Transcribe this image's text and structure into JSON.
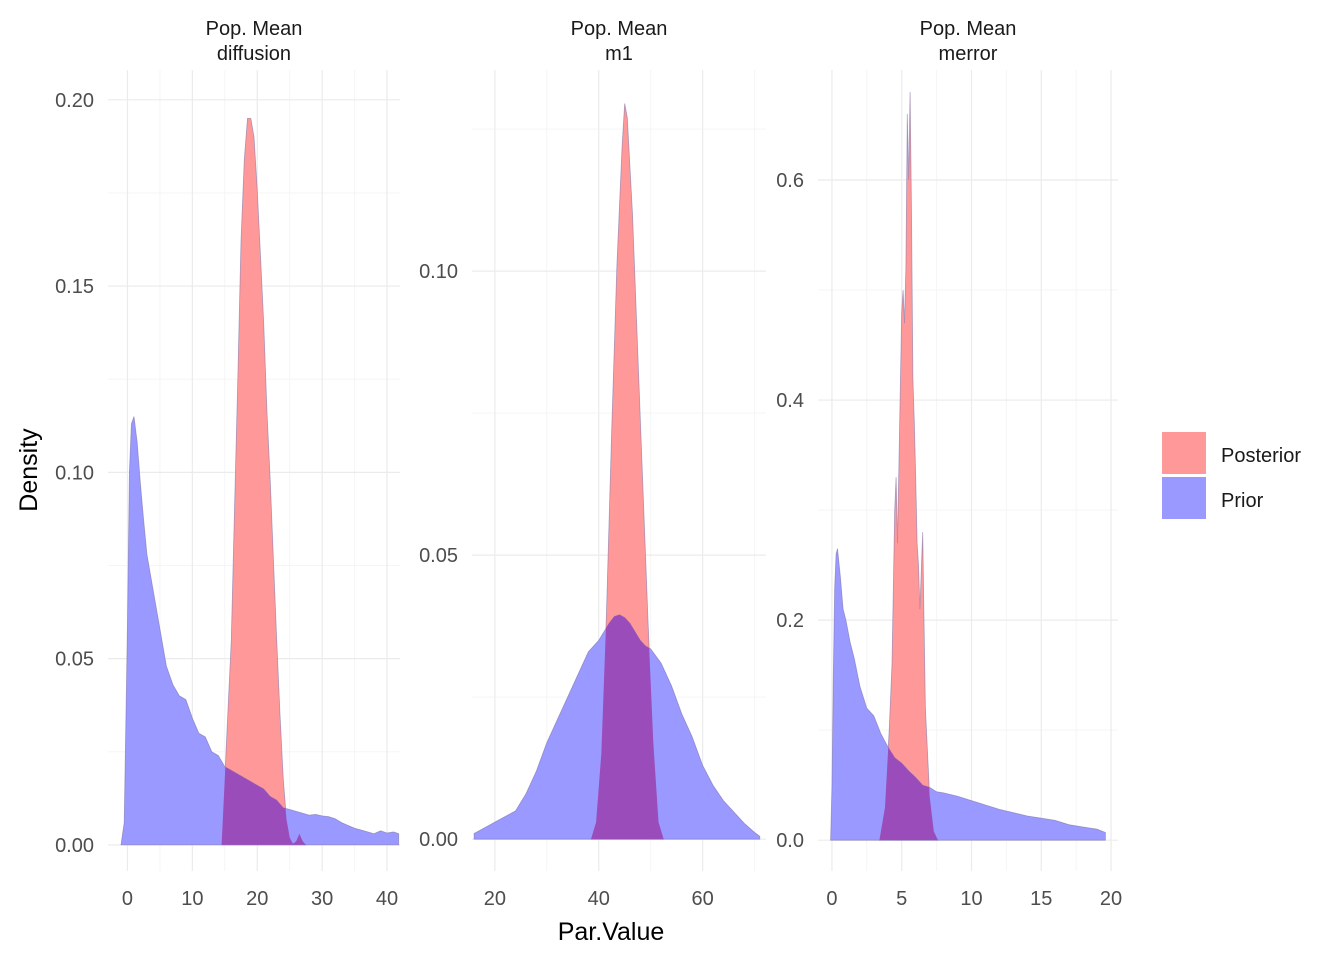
{
  "chart_data": {
    "type": "area",
    "xlabel": "Par.Value",
    "ylabel": "Density",
    "legend": {
      "position": "right",
      "entries": [
        {
          "name": "Posterior",
          "color": "#ff9999"
        },
        {
          "name": "Prior",
          "color": "#9999ff"
        }
      ]
    },
    "colors": {
      "posterior_fill": "#ff9999",
      "prior_fill": "#9999ff",
      "overlap_fill": "#9a4cba",
      "outline": "#7a6fa8",
      "grid_major": "#ebebeb",
      "grid_minor": "#f5f5f5"
    },
    "grid": true,
    "panels": [
      {
        "strip": [
          "Pop. Mean",
          "diffusion"
        ],
        "xlim": [
          -3,
          42
        ],
        "ylim": [
          -0.007,
          0.208
        ],
        "xticks": [
          0,
          10,
          20,
          30,
          40
        ],
        "yticks": [
          0.0,
          0.05,
          0.1,
          0.15,
          0.2
        ],
        "ytick_labels": [
          "0.00",
          "0.05",
          "0.10",
          "0.15",
          "0.20"
        ],
        "series": [
          {
            "name": "Prior",
            "x": [
              -1,
              -0.5,
              0,
              0.3,
              0.6,
              1,
              1.5,
              2,
              2.5,
              3,
              4,
              5,
              6,
              7,
              8,
              9,
              10,
              11,
              12,
              13,
              14,
              15,
              16,
              17,
              18,
              19,
              20,
              21,
              22,
              23,
              24,
              25,
              26,
              27,
              28,
              29,
              30,
              31,
              32,
              33,
              34,
              35,
              36,
              37,
              38,
              39,
              40,
              41,
              41.8
            ],
            "y": [
              0,
              0.006,
              0.06,
              0.1,
              0.113,
              0.115,
              0.108,
              0.097,
              0.087,
              0.078,
              0.068,
              0.058,
              0.048,
              0.043,
              0.04,
              0.039,
              0.034,
              0.03,
              0.029,
              0.025,
              0.024,
              0.021,
              0.02,
              0.019,
              0.018,
              0.017,
              0.016,
              0.015,
              0.013,
              0.012,
              0.01,
              0.0095,
              0.009,
              0.0085,
              0.008,
              0.0082,
              0.0078,
              0.0076,
              0.007,
              0.006,
              0.0052,
              0.0045,
              0.004,
              0.0035,
              0.003,
              0.0038,
              0.0032,
              0.0035,
              0.003
            ]
          },
          {
            "name": "Posterior",
            "x": [
              14.5,
              15,
              16,
              16.5,
              17,
              17.5,
              18,
              18.5,
              19,
              19.5,
              20,
              20.5,
              21,
              21.5,
              22,
              22.5,
              23,
              23.5,
              24,
              24.5,
              25,
              25.5,
              26,
              26.5,
              27,
              27.5
            ],
            "y": [
              0,
              0.018,
              0.055,
              0.09,
              0.125,
              0.162,
              0.184,
              0.195,
              0.195,
              0.19,
              0.176,
              0.158,
              0.14,
              0.116,
              0.098,
              0.076,
              0.055,
              0.035,
              0.018,
              0.007,
              0.002,
              0.0003,
              0.001,
              0.003,
              0.001,
              0
            ]
          }
        ]
      },
      {
        "strip": [
          "Pop. Mean",
          "m1"
        ],
        "xlim": [
          15.6,
          72.2
        ],
        "ylim": [
          -0.0056,
          0.1354
        ],
        "xticks": [
          20,
          40,
          60
        ],
        "yticks": [
          0.0,
          0.05,
          0.1
        ],
        "ytick_labels": [
          "0.00",
          "0.05",
          "0.10"
        ],
        "series": [
          {
            "name": "Prior",
            "x": [
              16,
              18,
              20,
              22,
              24,
              26,
              28,
              30,
              32,
              34,
              36,
              38,
              40,
              42,
              43,
              44,
              45,
              46,
              47,
              48,
              49,
              50,
              52,
              54,
              56,
              58,
              60,
              62,
              64,
              66,
              68,
              70,
              71
            ],
            "y": [
              0.001,
              0.002,
              0.003,
              0.004,
              0.005,
              0.008,
              0.012,
              0.017,
              0.021,
              0.025,
              0.029,
              0.033,
              0.035,
              0.038,
              0.0392,
              0.0395,
              0.039,
              0.038,
              0.0365,
              0.035,
              0.034,
              0.0335,
              0.031,
              0.027,
              0.022,
              0.018,
              0.013,
              0.0095,
              0.0068,
              0.0048,
              0.0028,
              0.0012,
              0.0005
            ]
          },
          {
            "name": "Posterior",
            "x": [
              38.5,
              39.5,
              40.5,
              41.5,
              42.5,
              43.5,
              44.5,
              45,
              45.5,
              46.5,
              47.5,
              48.5,
              49.5,
              50.5,
              51.5,
              52.5
            ],
            "y": [
              0,
              0.003,
              0.015,
              0.04,
              0.072,
              0.101,
              0.122,
              0.1295,
              0.127,
              0.11,
              0.086,
              0.062,
              0.038,
              0.017,
              0.003,
              0
            ]
          }
        ]
      },
      {
        "strip": [
          "Pop. Mean",
          "merror"
        ],
        "xlim": [
          -1,
          20.5
        ],
        "ylim": [
          -0.028,
          0.7
        ],
        "xticks": [
          0,
          5,
          10,
          15,
          20
        ],
        "yticks": [
          0.0,
          0.2,
          0.4,
          0.6
        ],
        "ytick_labels": [
          "0.0",
          "0.2",
          "0.4",
          "0.6"
        ],
        "series": [
          {
            "name": "Prior",
            "x": [
              -0.1,
              0,
              0.1,
              0.2,
              0.3,
              0.4,
              0.6,
              0.8,
              1,
              1.3,
              1.6,
              2,
              2.5,
              3,
              3.5,
              4,
              4.5,
              5,
              5.5,
              6,
              6.5,
              7,
              7.5,
              8,
              9,
              10,
              11,
              12,
              13,
              14,
              15,
              16,
              17,
              18,
              19,
              19.6
            ],
            "y": [
              0,
              0.05,
              0.15,
              0.23,
              0.26,
              0.265,
              0.24,
              0.21,
              0.2,
              0.18,
              0.165,
              0.14,
              0.12,
              0.113,
              0.097,
              0.085,
              0.075,
              0.07,
              0.063,
              0.057,
              0.05,
              0.048,
              0.044,
              0.043,
              0.04,
              0.036,
              0.032,
              0.028,
              0.025,
              0.022,
              0.02,
              0.018,
              0.014,
              0.012,
              0.01,
              0.007
            ]
          },
          {
            "name": "Posterior",
            "x": [
              3.4,
              3.8,
              4.1,
              4.3,
              4.5,
              4.6,
              4.7,
              4.8,
              5,
              5.1,
              5.2,
              5.3,
              5.4,
              5.5,
              5.6,
              5.7,
              5.8,
              5.9,
              6,
              6.1,
              6.2,
              6.3,
              6.5,
              6.6,
              6.7,
              7,
              7.3,
              7.6
            ],
            "y": [
              0,
              0.03,
              0.1,
              0.16,
              0.3,
              0.33,
              0.27,
              0.34,
              0.48,
              0.5,
              0.47,
              0.52,
              0.66,
              0.6,
              0.68,
              0.57,
              0.42,
              0.38,
              0.33,
              0.27,
              0.25,
              0.21,
              0.28,
              0.2,
              0.12,
              0.04,
              0.008,
              0
            ]
          }
        ]
      }
    ]
  }
}
